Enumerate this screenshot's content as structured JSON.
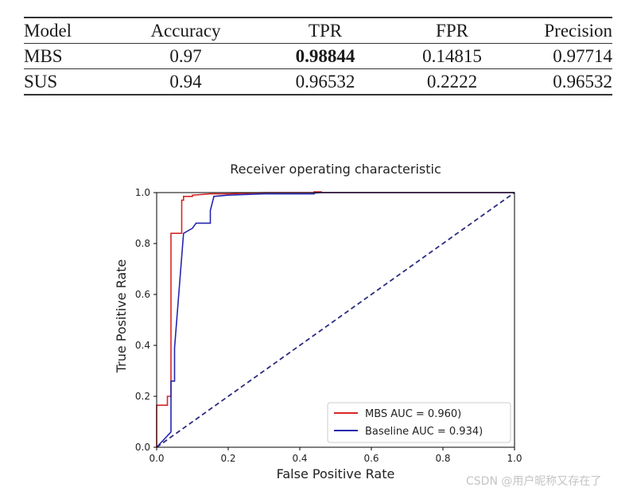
{
  "table": {
    "headers": [
      "Model",
      "Accuracy",
      "TPR",
      "FPR",
      "Precision"
    ],
    "rows": [
      {
        "cells": [
          "MBS",
          "0.97",
          "0.98844",
          "0.14815",
          "0.97714"
        ],
        "bold": [
          false,
          false,
          true,
          false,
          false
        ]
      },
      {
        "cells": [
          "SUS",
          "0.94",
          "0.96532",
          "0.2222",
          "0.96532"
        ],
        "bold": [
          false,
          false,
          false,
          false,
          false
        ]
      }
    ]
  },
  "chart_data": {
    "type": "line",
    "title": "Receiver operating characteristic",
    "xlabel": "False Positive Rate",
    "ylabel": "True Positive Rate",
    "xlim": [
      0,
      1
    ],
    "ylim": [
      0,
      1
    ],
    "xticks": [
      "0.0",
      "0.2",
      "0.4",
      "0.6",
      "0.8",
      "1.0"
    ],
    "yticks": [
      "0.0",
      "0.2",
      "0.4",
      "0.6",
      "0.8",
      "1.0"
    ],
    "grid": false,
    "legend_position": "lower-right",
    "series": [
      {
        "name": "MBS AUC = 0.960)",
        "color": "#d62728",
        "x": [
          0,
          0,
          0.03,
          0.03,
          0.04,
          0.04,
          0.07,
          0.07,
          0.075,
          0.075,
          0.09,
          0.1,
          0.1,
          0.15,
          0.2,
          0.3,
          0.44,
          0.44,
          0.46,
          0.46,
          1.0
        ],
        "y": [
          0,
          0.165,
          0.165,
          0.2,
          0.2,
          0.84,
          0.84,
          0.97,
          0.97,
          0.985,
          0.985,
          0.985,
          0.99,
          0.995,
          0.995,
          1.0,
          1.0,
          1.003,
          1.003,
          1.0,
          1.0
        ]
      },
      {
        "name": "Baseline AUC = 0.934)",
        "color": "#2626b0",
        "x": [
          0,
          0.04,
          0.04,
          0.05,
          0.05,
          0.075,
          0.1,
          0.11,
          0.15,
          0.15,
          0.16,
          0.2,
          0.3,
          0.44,
          0.44,
          0.46,
          1.0
        ],
        "y": [
          0,
          0.06,
          0.26,
          0.26,
          0.39,
          0.84,
          0.86,
          0.88,
          0.88,
          0.93,
          0.985,
          0.99,
          0.995,
          0.995,
          0.998,
          1.0,
          1.0
        ]
      },
      {
        "name": "",
        "color": "#2b2b80",
        "dashed": true,
        "x": [
          0,
          1
        ],
        "y": [
          0,
          1
        ]
      }
    ]
  },
  "watermark": "CSDN @用户昵称又存在了"
}
